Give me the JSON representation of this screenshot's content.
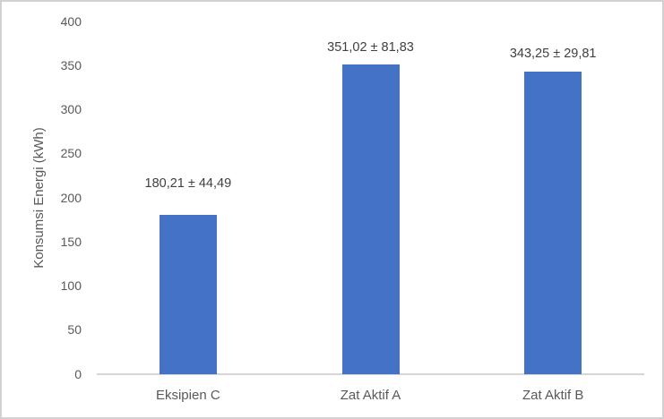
{
  "chart_data": {
    "type": "bar",
    "title": "",
    "xlabel": "",
    "ylabel": "Konsumsi Energi (kWh)",
    "categories": [
      "Eksipien C",
      "Zat Aktif A",
      "Zat Aktif B"
    ],
    "values": [
      180.21,
      351.02,
      343.25
    ],
    "errors": [
      44.49,
      81.83,
      29.81
    ],
    "data_labels": [
      "180,21 ± 44,49",
      "351,02 ± 81,83",
      "343,25 ± 29,81"
    ],
    "ylim": [
      0,
      400
    ],
    "yticks": [
      "0",
      "50",
      "100",
      "150",
      "200",
      "250",
      "300",
      "350",
      "400"
    ],
    "grid": false,
    "legend": "none",
    "colors": {
      "bar": "#4472C4",
      "axis_line": "#d6d6d6",
      "tick_label": "#595959",
      "data_label": "#404040"
    }
  }
}
